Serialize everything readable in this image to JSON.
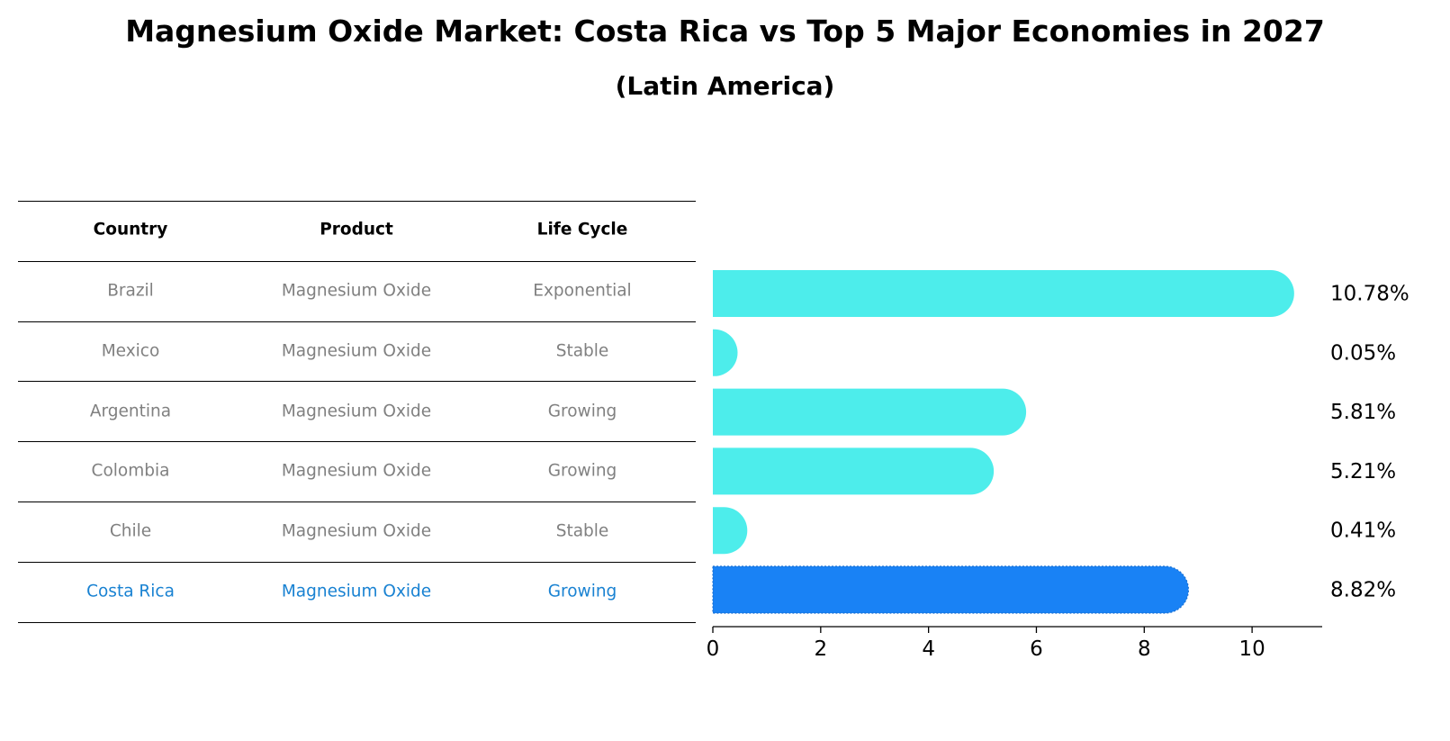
{
  "title": "Magnesium Oxide Market: Costa Rica vs Top 5 Major Economies in 2027",
  "subtitle": "(Latin America)",
  "table": {
    "headers": [
      "Country",
      "Product",
      "Life Cycle"
    ],
    "rows": [
      {
        "country": "Brazil",
        "product": "Magnesium Oxide",
        "life_cycle": "Exponential",
        "highlight": false
      },
      {
        "country": "Mexico",
        "product": "Magnesium Oxide",
        "life_cycle": "Stable",
        "highlight": false
      },
      {
        "country": "Argentina",
        "product": "Magnesium Oxide",
        "life_cycle": "Growing",
        "highlight": false
      },
      {
        "country": "Colombia",
        "product": "Magnesium Oxide",
        "life_cycle": "Growing",
        "highlight": false
      },
      {
        "country": "Chile",
        "product": "Magnesium Oxide",
        "life_cycle": "Stable",
        "highlight": false
      },
      {
        "country": "Costa Rica",
        "product": "Magnesium Oxide",
        "life_cycle": "Growing",
        "highlight": true
      }
    ]
  },
  "colors": {
    "bar": "#4DEDEB",
    "highlight_bar": "#1982F5",
    "highlight_text": "#1982D2",
    "muted_text": "#808080",
    "axis": "#000000"
  },
  "chart_data": {
    "type": "bar",
    "orientation": "horizontal",
    "categories": [
      "Brazil",
      "Mexico",
      "Argentina",
      "Colombia",
      "Chile",
      "Costa Rica"
    ],
    "values": [
      10.78,
      0.05,
      5.81,
      5.21,
      0.41,
      8.82
    ],
    "value_labels": [
      "10.78%",
      "0.05%",
      "5.81%",
      "5.21%",
      "0.41%",
      "8.82%"
    ],
    "highlight_category": "Costa Rica",
    "xlim": [
      0,
      11.3
    ],
    "xticks": [
      0,
      2,
      4,
      6,
      8,
      10
    ],
    "xtick_labels": [
      "0",
      "2",
      "4",
      "6",
      "8",
      "10"
    ],
    "xlabel": "",
    "ylabel": "",
    "grid": false
  }
}
